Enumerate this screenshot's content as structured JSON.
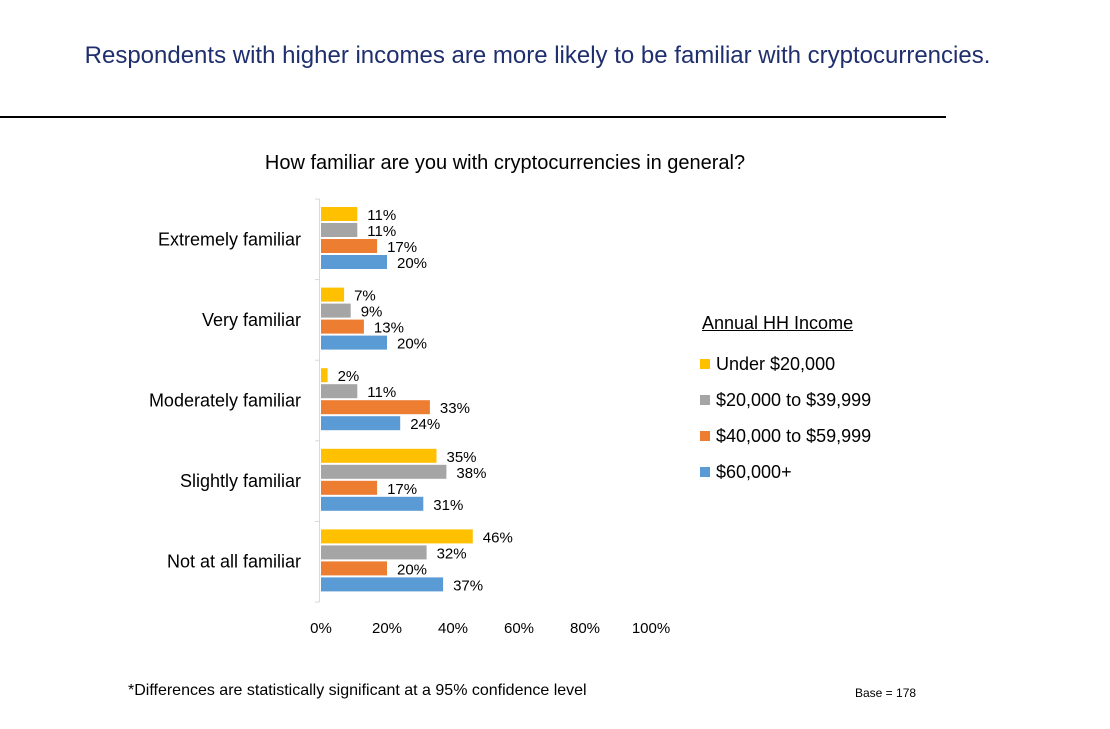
{
  "headline": "Respondents with higher incomes are more likely to be familiar with cryptocurrencies.",
  "footnote": "*Differences are statistically significant at a 95% confidence level",
  "base_note": "Base = 178",
  "chart_data": {
    "type": "bar",
    "orientation": "horizontal",
    "title": "How familiar are you with cryptocurrencies in general?",
    "categories": [
      "Extremely familiar",
      "Very familiar",
      "Moderately familiar",
      "Slightly familiar",
      "Not at all familiar"
    ],
    "series": [
      {
        "name": "Under $20,000",
        "color": "#ffc000",
        "values": [
          11,
          7,
          2,
          35,
          46
        ]
      },
      {
        "name": "$20,000 to $39,999",
        "color": "#a5a5a5",
        "values": [
          11,
          9,
          11,
          38,
          32
        ]
      },
      {
        "name": "$40,000 to $59,999",
        "color": "#ed7d31",
        "values": [
          17,
          13,
          33,
          17,
          20
        ]
      },
      {
        "name": "$60,000+",
        "color": "#5b9bd5",
        "values": [
          20,
          20,
          24,
          31,
          37
        ]
      }
    ],
    "xlim": [
      0,
      100
    ],
    "xticks": [
      "0%",
      "20%",
      "40%",
      "60%",
      "80%",
      "100%"
    ],
    "value_suffix": "%",
    "grid": false,
    "legend_title": "Annual HH Income",
    "legend_position": "right"
  }
}
